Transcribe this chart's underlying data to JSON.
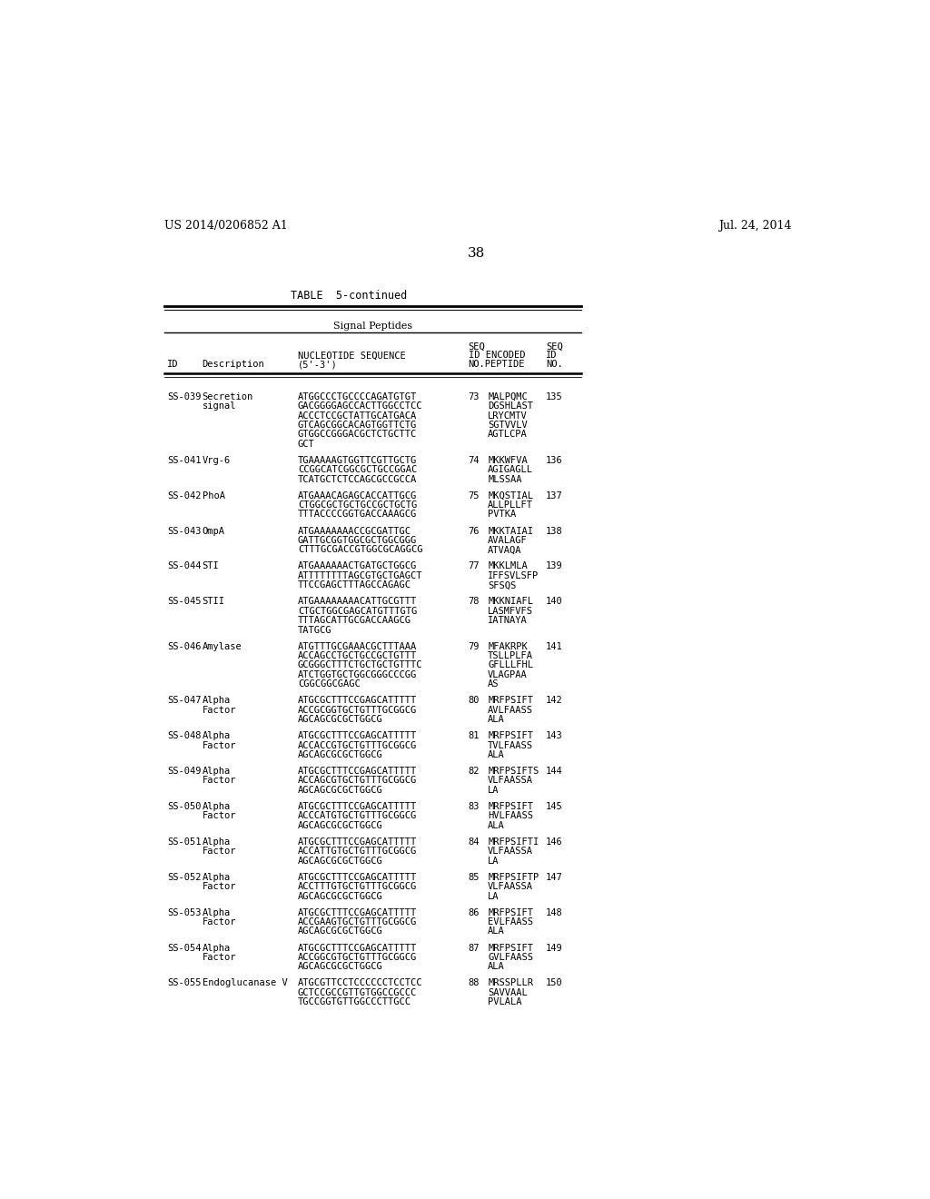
{
  "header_left": "US 2014/0206852 A1",
  "header_right": "Jul. 24, 2014",
  "page_number": "38",
  "table_title": "TABLE  5-continued",
  "table_subtitle": "Signal Peptides",
  "rows": [
    {
      "id": "SS-039",
      "desc": "Secretion\n        signal",
      "nucleotide": "ATGGCCCTGCCCCAGATGTGT\nGACGGGGAGCCACTTGGCCTCC\nACCCTCCGCTATTGCATGACA\nGTCAGCGGCACAGTGGTTCTG\nGTGGCCGGGACGCTCTGCTTC\nGCT",
      "seq_num": "73",
      "seq_peptide": "MALPQMC\nDGSHLAST\nLRYCMTV\nSGTVVLV\nAGTLCPA",
      "seq_id": "135"
    },
    {
      "id": "SS-041",
      "desc": "Vrg-6",
      "nucleotide": "TGAAAAAGTGGTTCGTTGCTG\nCCGGCATCGGCGCTGCCGGAC\nTCATGCTCTCCAGCGCCGCCA",
      "seq_num": "74",
      "seq_peptide": "MKKWFVA\nAGIGAGLL\nMLSSAA",
      "seq_id": "136"
    },
    {
      "id": "SS-042",
      "desc": "PhoA",
      "nucleotide": "ATGAAACAGAGCACCATTGCG\nCTGGCGCTGCTGCCGCTGCTG\nTTTACCCCGGTGACCAAAGCG",
      "seq_num": "75",
      "seq_peptide": "MKQSTIAL\nALLPLLFT\nPVTKA",
      "seq_id": "137"
    },
    {
      "id": "SS-043",
      "desc": "OmpA",
      "nucleotide": "ATGAAAAAAACCGCGATTGC\nGATTGCGGTGGCGCTGGCGGG\nCTTTGCGACCGTGGCGCAGGCG",
      "seq_num": "76",
      "seq_peptide": "MKKTAIAI\nAVALAGF\nATVAQA",
      "seq_id": "138"
    },
    {
      "id": "SS-044",
      "desc": "STI",
      "nucleotide": "ATGAAAAAACTGATGCTGGCG\nATTTTTTTTAGCGTGCTGAGCT\nTTCCGAGCTTTAGCCAGAGC",
      "seq_num": "77",
      "seq_peptide": "MKKLMLA\nIFFSVLSFP\nSFSQS",
      "seq_id": "139"
    },
    {
      "id": "SS-045",
      "desc": "STII",
      "nucleotide": "ATGAAAAAAAACATTGCGTTT\nCTGCTGGCGAGCATGTTTGTG\nTTTAGCATTGCGACCAAGCG\nTATGCG",
      "seq_num": "78",
      "seq_peptide": "MKKNIAFL\nLASMFVFS\nIATNAYA",
      "seq_id": "140"
    },
    {
      "id": "SS-046",
      "desc": "Amylase",
      "nucleotide": "ATGTTTGCGAAACGCTTTAAA\nACCAGCCTGCTGCCGCTGTTT\nGCGGGCTTTCTGCTGCTGTTTC\nATCTGGTGCTGGCGGGCCCGG\nCGGCGGCGAGC",
      "seq_num": "79",
      "seq_peptide": "MFAKRPK\nTSLLPLFA\nGFLLLFHL\nVLAGPAA\nAS",
      "seq_id": "141"
    },
    {
      "id": "SS-047",
      "desc": "Alpha\n      Factor",
      "nucleotide": "ATGCGCTTTCCGAGCATTTTT\nACCGCGGTGCTGTTTGCGGCG\nAGCAGCGCGCTGGCG",
      "seq_num": "80",
      "seq_peptide": "MRFPSIFT\nAVLFAASS\nALA",
      "seq_id": "142"
    },
    {
      "id": "SS-048",
      "desc": "Alpha\n      Factor",
      "nucleotide": "ATGCGCTTTCCGAGCATTTTT\nACCACCGTGCTGTTTGCGGCG\nAGCAGCGCGCTGGCG",
      "seq_num": "81",
      "seq_peptide": "MRFPSIFT\nTVLFAASS\nALA",
      "seq_id": "143"
    },
    {
      "id": "SS-049",
      "desc": "Alpha\n      Factor",
      "nucleotide": "ATGCGCTTTCCGAGCATTTTT\nACCAGCGTGCTGTTTGCGGCG\nAGCAGCGCGCTGGCG",
      "seq_num": "82",
      "seq_peptide": "MRFPSIFTS\nVLFAASSA\nLA",
      "seq_id": "144"
    },
    {
      "id": "SS-050",
      "desc": "Alpha\n      Factor",
      "nucleotide": "ATGCGCTTTCCGAGCATTTTT\nACCCATGTGCTGTTTGCGGCG\nAGCAGCGCGCTGGCG",
      "seq_num": "83",
      "seq_peptide": "MRFPSIFT\nHVLFAASS\nALA",
      "seq_id": "145"
    },
    {
      "id": "SS-051",
      "desc": "Alpha\n      Factor",
      "nucleotide": "ATGCGCTTTCCGAGCATTTTT\nACCATTGTGCTGTTTGCGGCG\nAGCAGCGCGCTGGCG",
      "seq_num": "84",
      "seq_peptide": "MRFPSIFTI\nVLFAASSA\nLA",
      "seq_id": "146"
    },
    {
      "id": "SS-052",
      "desc": "Alpha\n      Factor",
      "nucleotide": "ATGCGCTTTCCGAGCATTTTT\nACCTTTGTGCTGTTTGCGGCG\nAGCAGCGCGCTGGCG",
      "seq_num": "85",
      "seq_peptide": "MRFPSIFTP\nVLFAASSA\nLA",
      "seq_id": "147"
    },
    {
      "id": "SS-053",
      "desc": "Alpha\n      Factor",
      "nucleotide": "ATGCGCTTTCCGAGCATTTTT\nACCGAAGTGCTGTTTGCGGCG\nAGCAGCGCGCTGGCG",
      "seq_num": "86",
      "seq_peptide": "MRFPSIFT\nEVLFAASS\nALA",
      "seq_id": "148"
    },
    {
      "id": "SS-054",
      "desc": "Alpha\n      Factor",
      "nucleotide": "ATGCGCTTTCCGAGCATTTTT\nACCGGCGTGCTGTTTGCGGCG\nAGCAGCGCGCTGGCG",
      "seq_num": "87",
      "seq_peptide": "MRFPSIFT\nGVLFAASS\nALA",
      "seq_id": "149"
    },
    {
      "id": "SS-055",
      "desc": "Endoglucanase V",
      "nucleotide": "ATGCGTTCCTCCCCCCTCCTCC\nGCTCCGCCGTTGTGGCCGCCC\nTGCCGGTGTTGGCCCTTGCC",
      "seq_num": "88",
      "seq_peptide": "MRSSPLLR\nSAVVAAL\nPVLALA",
      "seq_id": "150"
    }
  ],
  "bg_color": "#ffffff",
  "text_color": "#000000"
}
